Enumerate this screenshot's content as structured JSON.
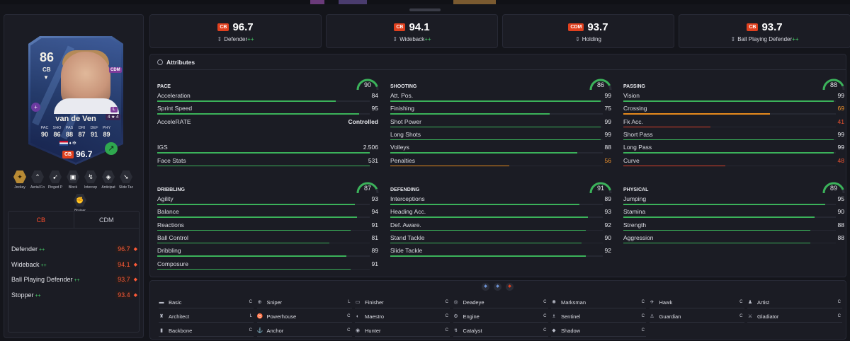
{
  "card": {
    "rating": "86",
    "position": "CB",
    "alt_position": "CDM",
    "role_letter": "L",
    "form": "4 ★ 4",
    "name": "van de Ven",
    "stat_labels": [
      "PAC",
      "SHO",
      "PAS",
      "DRI",
      "DEF",
      "PHY"
    ],
    "stat_values": [
      "90",
      "86",
      "88",
      "87",
      "91",
      "89"
    ],
    "ovr_badge": "CB",
    "ovr_value": "96.7"
  },
  "card_playstyles": [
    {
      "label": "Jockey",
      "icon": "jockey-icon",
      "gold": true,
      "glyph": "✦"
    },
    {
      "label": "Aerial Fo",
      "icon": "aerial-icon",
      "gold": false,
      "glyph": "⌃"
    },
    {
      "label": "Pinged P",
      "icon": "pinged-pass-icon",
      "gold": false,
      "glyph": "➹"
    },
    {
      "label": "Block",
      "icon": "block-icon",
      "gold": false,
      "glyph": "▣"
    },
    {
      "label": "Intercep",
      "icon": "intercept-icon",
      "gold": false,
      "glyph": "↯"
    },
    {
      "label": "Anticipat",
      "icon": "anticipate-icon",
      "gold": false,
      "glyph": "◈"
    },
    {
      "label": "Slide Tac",
      "icon": "slide-tackle-icon",
      "gold": false,
      "glyph": "➘"
    },
    {
      "label": "Bruiser",
      "icon": "bruiser-icon",
      "gold": false,
      "glyph": "✊"
    }
  ],
  "position_tabs": [
    "CB",
    "CDM"
  ],
  "position_roles": [
    {
      "name": "Defender",
      "plus": "++",
      "value": "96.7"
    },
    {
      "name": "Wideback",
      "plus": "++",
      "value": "94.1"
    },
    {
      "name": "Ball Playing Defender",
      "plus": "++",
      "value": "93.7"
    },
    {
      "name": "Stopper",
      "plus": "++",
      "value": "93.4"
    }
  ],
  "role_boxes": [
    {
      "badge": "CB",
      "value": "96.7",
      "role": "Defender",
      "plus": "++"
    },
    {
      "badge": "CB",
      "value": "94.1",
      "role": "Wideback",
      "plus": "++"
    },
    {
      "badge": "CDM",
      "value": "93.7",
      "role": "Holding",
      "plus": ""
    },
    {
      "badge": "CB",
      "value": "93.7",
      "role": "Ball Playing Defender",
      "plus": "++"
    }
  ],
  "attributes_title": "Attributes",
  "categories": [
    {
      "title": "PACE",
      "score": 90,
      "rows": [
        {
          "label": "Acceleration",
          "value": "84",
          "num": 84,
          "tone": "green"
        },
        {
          "label": "Sprint Speed",
          "value": "95",
          "num": 95,
          "tone": "green"
        },
        {
          "label": "AcceleRATE",
          "value": "Controlled",
          "num": null,
          "tone": "plain"
        },
        {
          "label": "",
          "value": "",
          "num": null,
          "tone": "plain"
        },
        {
          "label": "IGS",
          "value": "2.506",
          "num": 100,
          "tone": "green"
        },
        {
          "label": "Face Stats",
          "value": "531",
          "num": 100,
          "tone": "green"
        }
      ]
    },
    {
      "title": "SHOOTING",
      "score": 86,
      "rows": [
        {
          "label": "Att. Pos.",
          "value": "99",
          "num": 99,
          "tone": "green"
        },
        {
          "label": "Finishing",
          "value": "75",
          "num": 75,
          "tone": "green"
        },
        {
          "label": "Shot Power",
          "value": "99",
          "num": 99,
          "tone": "green"
        },
        {
          "label": "Long Shots",
          "value": "99",
          "num": 99,
          "tone": "green"
        },
        {
          "label": "Volleys",
          "value": "88",
          "num": 88,
          "tone": "green"
        },
        {
          "label": "Penalties",
          "value": "56",
          "num": 56,
          "tone": "orange"
        }
      ]
    },
    {
      "title": "PASSING",
      "score": 88,
      "rows": [
        {
          "label": "Vision",
          "value": "99",
          "num": 99,
          "tone": "green"
        },
        {
          "label": "Crossing",
          "value": "69",
          "num": 69,
          "tone": "orange"
        },
        {
          "label": "Fk Acc.",
          "value": "41",
          "num": 41,
          "tone": "red"
        },
        {
          "label": "Short Pass",
          "value": "99",
          "num": 99,
          "tone": "green"
        },
        {
          "label": "Long Pass",
          "value": "99",
          "num": 99,
          "tone": "green"
        },
        {
          "label": "Curve",
          "value": "48",
          "num": 48,
          "tone": "red"
        }
      ]
    },
    {
      "title": "DRIBBLING",
      "score": 87,
      "rows": [
        {
          "label": "Agility",
          "value": "93",
          "num": 93,
          "tone": "green"
        },
        {
          "label": "Balance",
          "value": "94",
          "num": 94,
          "tone": "green"
        },
        {
          "label": "Reactions",
          "value": "91",
          "num": 91,
          "tone": "green"
        },
        {
          "label": "Ball Control",
          "value": "81",
          "num": 81,
          "tone": "green"
        },
        {
          "label": "Dribbling",
          "value": "89",
          "num": 89,
          "tone": "green"
        },
        {
          "label": "Composure",
          "value": "91",
          "num": 91,
          "tone": "green"
        }
      ]
    },
    {
      "title": "DEFENDING",
      "score": 91,
      "rows": [
        {
          "label": "Interceptions",
          "value": "89",
          "num": 89,
          "tone": "green"
        },
        {
          "label": "Heading Acc.",
          "value": "93",
          "num": 93,
          "tone": "green"
        },
        {
          "label": "Def. Aware.",
          "value": "92",
          "num": 92,
          "tone": "green"
        },
        {
          "label": "Stand Tackle",
          "value": "90",
          "num": 90,
          "tone": "green"
        },
        {
          "label": "Slide Tackle",
          "value": "92",
          "num": 92,
          "tone": "green"
        }
      ]
    },
    {
      "title": "PHYSICAL",
      "score": 89,
      "rows": [
        {
          "label": "Jumping",
          "value": "95",
          "num": 95,
          "tone": "green"
        },
        {
          "label": "Stamina",
          "value": "90",
          "num": 90,
          "tone": "green"
        },
        {
          "label": "Strength",
          "value": "88",
          "num": 88,
          "tone": "green"
        },
        {
          "label": "Aggression",
          "value": "88",
          "num": 88,
          "tone": "green"
        }
      ]
    }
  ],
  "chem_styles": [
    [
      {
        "name": "Basic",
        "grade": "C",
        "icon": "basic-icon",
        "glyph": "▬"
      },
      {
        "name": "Architect",
        "grade": "L",
        "icon": "architect-icon",
        "glyph": "♜"
      },
      {
        "name": "Backbone",
        "grade": "C",
        "icon": "backbone-icon",
        "glyph": "▮"
      }
    ],
    [
      {
        "name": "Sniper",
        "grade": "L",
        "icon": "sniper-icon",
        "glyph": "⊕"
      },
      {
        "name": "Powerhouse",
        "grade": "C",
        "icon": "powerhouse-icon",
        "glyph": "♉"
      },
      {
        "name": "Anchor",
        "grade": "C",
        "icon": "anchor-icon",
        "glyph": "⚓"
      }
    ],
    [
      {
        "name": "Finisher",
        "grade": "C",
        "icon": "finisher-icon",
        "glyph": "▭"
      },
      {
        "name": "Maestro",
        "grade": "C",
        "icon": "maestro-icon",
        "glyph": "◐"
      },
      {
        "name": "Hunter",
        "grade": "C",
        "icon": "hunter-icon",
        "glyph": "◉"
      }
    ],
    [
      {
        "name": "Deadeye",
        "grade": "C",
        "icon": "deadeye-icon",
        "glyph": "◎"
      },
      {
        "name": "Engine",
        "grade": "C",
        "icon": "engine-icon",
        "glyph": "⚙"
      },
      {
        "name": "Catalyst",
        "grade": "C",
        "icon": "catalyst-icon",
        "glyph": "↯"
      }
    ],
    [
      {
        "name": "Marksman",
        "grade": "C",
        "icon": "marksman-icon",
        "glyph": "✺"
      },
      {
        "name": "Sentinel",
        "grade": "C",
        "icon": "sentinel-icon",
        "glyph": "♗"
      },
      {
        "name": "Shadow",
        "grade": "C",
        "icon": "shadow-icon",
        "glyph": "◆"
      }
    ],
    [
      {
        "name": "Hawk",
        "grade": "C",
        "icon": "hawk-icon",
        "glyph": "✈"
      },
      {
        "name": "Guardian",
        "grade": "C",
        "icon": "guardian-icon",
        "glyph": "♙"
      }
    ],
    [
      {
        "name": "Artist",
        "grade": "C",
        "icon": "artist-icon",
        "glyph": "♟"
      },
      {
        "name": "Gladiator",
        "grade": "C",
        "icon": "gladiator-icon",
        "glyph": "⚔"
      }
    ]
  ],
  "colors": {
    "accent": "#e0401e",
    "green": "#3bb25a",
    "orange": "#e68a1c",
    "red": "#d8412a",
    "panel": "#1b1c24"
  }
}
